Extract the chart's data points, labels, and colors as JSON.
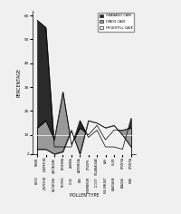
{
  "xlabel": "POLLEN TYPE",
  "ylabel": "PERCENTAGE",
  "ylim": [
    2,
    62
  ],
  "yticks": [
    2,
    10,
    20,
    30,
    40,
    50,
    60
  ],
  "ytick_labels": [
    "2",
    "10",
    "20",
    "30",
    "40",
    "50",
    "60"
  ],
  "legend_labels": [
    "GRANADO CAVE",
    "HINDS CAVE",
    "FRIGHTFUL CAVE"
  ],
  "legend_colors": [
    "#2a2a2a",
    "#999999",
    "#ffffff"
  ],
  "categories_row1": [
    "PINON",
    "JUNIPER-NE",
    "CACTACEAE",
    "EPHEDRA",
    "LARREA",
    "ARTEMESIA",
    "ZYGOPH.",
    "SOLANACEAE",
    "ASH",
    "OLIVE",
    "OPUNTIA",
    "OPUNTIA"
  ],
  "categories_row2": [
    "PINON",
    "JUNIPER-NE",
    "CACTACEAE",
    "PROPSIS",
    "OLIVE",
    "PINE",
    "SINSIMBRIUM",
    "LOCUST",
    "BLK WALNUT",
    "ANATEASIA",
    "ANAQUA",
    "STAR"
  ],
  "granado": [
    58,
    55,
    5,
    5,
    5,
    16,
    9,
    12,
    5,
    5,
    4,
    17
  ],
  "hinds": [
    13,
    16,
    8,
    28,
    6,
    13,
    10,
    14,
    8,
    12,
    12,
    13
  ],
  "frightful": [
    4,
    4,
    2,
    3,
    12,
    2,
    16,
    15,
    13,
    14,
    10,
    5
  ],
  "granado_color": "#2a2a2a",
  "hinds_color": "#999999",
  "frightful_color": "#f0f0f0",
  "background_color": "#f0f0f0"
}
